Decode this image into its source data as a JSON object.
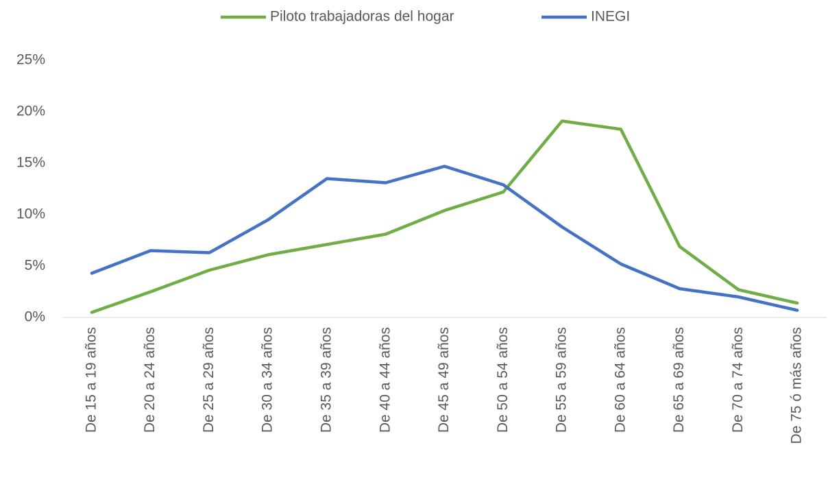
{
  "chart_data": {
    "type": "line",
    "categories": [
      "De 15 a 19 años",
      "De 20 a 24 años",
      "De 25 a 29 años",
      "De 30 a 34 años",
      "De 35 a 39 años",
      "De 40 a 44 años",
      "De 45 a 49 años",
      "De 50 a 54 años",
      "De 55 a 59 años",
      "De 60 a 64 años",
      "De 65 a 69 años",
      "De 70 a 74 años",
      "De 75 ó más años"
    ],
    "series": [
      {
        "name": "Piloto trabajadoras del hogar",
        "color": "#70ad47",
        "values": [
          0.5,
          2.5,
          4.6,
          6.1,
          7.1,
          8.1,
          10.4,
          12.2,
          19.1,
          18.3,
          6.9,
          2.7,
          1.4
        ]
      },
      {
        "name": "INEGI",
        "color": "#4472c4",
        "values": [
          4.3,
          6.5,
          6.3,
          9.5,
          13.5,
          13.1,
          14.7,
          12.9,
          8.8,
          5.2,
          2.8,
          2.0,
          0.7
        ]
      }
    ],
    "ylim": [
      0,
      25
    ],
    "yticks": [
      {
        "value": 0,
        "label": "0%"
      },
      {
        "value": 5,
        "label": "5%"
      },
      {
        "value": 10,
        "label": "10%"
      },
      {
        "value": 15,
        "label": "15%"
      },
      {
        "value": 20,
        "label": "20%"
      },
      {
        "value": 25,
        "label": "25%"
      }
    ],
    "grid": false,
    "legend": "top"
  }
}
